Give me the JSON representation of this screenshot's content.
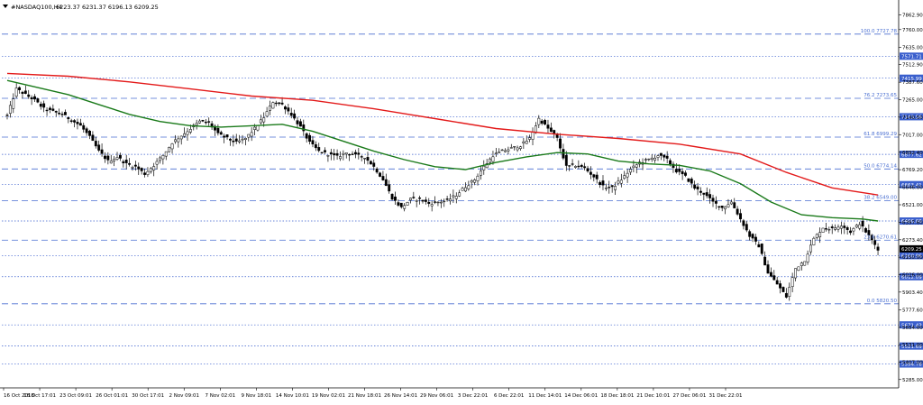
{
  "header": {
    "symbol_text": "#NASDAQ100,H4",
    "ohlc_text": "6223.37 6231.37 6196.13 6209.25",
    "dropdown_icon": "triangle-down-icon"
  },
  "colors": {
    "candle": "#000000",
    "ma_fast": "#1a7a1a",
    "ma_slow": "#e31a1a",
    "fib_line": "#4a6fd1",
    "level_line": "#3a5fcd",
    "level_label_bg": "#3a5fcd",
    "axis": "#000000"
  },
  "chart_data": {
    "type": "candlestick",
    "y_range": [
      5226,
      7950
    ],
    "price_axis_ticks": [
      "7862.90",
      "7760.00",
      "7635.00",
      "7512.90",
      "7387.60",
      "7265.00",
      "7140.50",
      "7017.00",
      "6892.40",
      "6769.20",
      "6646.00",
      "6521.00",
      "6397.60",
      "6273.40",
      "6150.00",
      "6026.00",
      "5903.40",
      "5777.60",
      "5654.00",
      "5531.00",
      "5407.00",
      "5285.00"
    ],
    "time_axis_ticks": [
      "16 Oct 2018",
      "18 Oct 17:01",
      "23 Oct 09:01",
      "26 Oct 01:01",
      "30 Oct 17:01",
      "2 Nov 09:01",
      "7 Nov 02:01",
      "9 Nov 18:01",
      "14 Nov 10:01",
      "19 Nov 02:01",
      "21 Nov 18:01",
      "26 Nov 14:01",
      "29 Nov 06:01",
      "3 Dec 22:01",
      "6 Dec 22:01",
      "11 Dec 14:01",
      "14 Dec 06:01",
      "18 Dec 18:01",
      "21 Dec 10:01",
      "27 Dec 06:01",
      "31 Dec 22:01"
    ],
    "fib_levels": [
      {
        "label": "100.0 7727.78",
        "price": 7727.78
      },
      {
        "label": "76.2 7273.65",
        "price": 7273.65
      },
      {
        "label": "61.8 6999.29",
        "price": 6999.29
      },
      {
        "label": "50.0 6774.14",
        "price": 6774.14
      },
      {
        "label": "38.2 6549.00",
        "price": 6549.0
      },
      {
        "label": "23.6 6270.61",
        "price": 6270.61
      },
      {
        "label": "0.0 5820.50",
        "price": 5820.5
      }
    ],
    "level_lines": [
      {
        "label": "7571.71",
        "price": 7571.71
      },
      {
        "label": "7415.99",
        "price": 7415.99
      },
      {
        "label": "7143.56",
        "price": 7143.56
      },
      {
        "label": "6877.62",
        "price": 6877.62
      },
      {
        "label": "6663.41",
        "price": 6663.41
      },
      {
        "label": "6406.00",
        "price": 6406.0
      },
      {
        "label": "6160.96",
        "price": 6160.96
      },
      {
        "label": "6012.09",
        "price": 6012.09
      },
      {
        "label": "5671.43",
        "price": 5671.43
      },
      {
        "label": "5521.69",
        "price": 5521.69
      },
      {
        "label": "5394.78",
        "price": 5394.78
      }
    ],
    "current_price": {
      "label": "6209.25",
      "price": 6209.25
    },
    "close_path": [
      [
        0,
        7150
      ],
      [
        3,
        7340
      ],
      [
        6,
        7300
      ],
      [
        9,
        7260
      ],
      [
        12,
        7200
      ],
      [
        15,
        7180
      ],
      [
        18,
        7160
      ],
      [
        21,
        7120
      ],
      [
        24,
        7080
      ],
      [
        27,
        7000
      ],
      [
        30,
        6900
      ],
      [
        33,
        6830
      ],
      [
        36,
        6860
      ],
      [
        39,
        6810
      ],
      [
        42,
        6790
      ],
      [
        45,
        6740
      ],
      [
        48,
        6800
      ],
      [
        51,
        6870
      ],
      [
        54,
        6960
      ],
      [
        57,
        7010
      ],
      [
        60,
        7060
      ],
      [
        63,
        7110
      ],
      [
        66,
        7100
      ],
      [
        69,
        7020
      ],
      [
        72,
        6990
      ],
      [
        75,
        6960
      ],
      [
        78,
        6990
      ],
      [
        81,
        7060
      ],
      [
        84,
        7140
      ],
      [
        87,
        7250
      ],
      [
        90,
        7230
      ],
      [
        93,
        7160
      ],
      [
        96,
        7070
      ],
      [
        99,
        6960
      ],
      [
        102,
        6900
      ],
      [
        105,
        6880
      ],
      [
        108,
        6860
      ],
      [
        111,
        6890
      ],
      [
        114,
        6870
      ],
      [
        117,
        6860
      ],
      [
        120,
        6790
      ],
      [
        123,
        6700
      ],
      [
        126,
        6570
      ],
      [
        129,
        6500
      ],
      [
        132,
        6560
      ],
      [
        135,
        6560
      ],
      [
        138,
        6530
      ],
      [
        141,
        6540
      ],
      [
        144,
        6550
      ],
      [
        147,
        6590
      ],
      [
        150,
        6650
      ],
      [
        153,
        6700
      ],
      [
        156,
        6790
      ],
      [
        159,
        6870
      ],
      [
        162,
        6900
      ],
      [
        165,
        6920
      ],
      [
        168,
        6940
      ],
      [
        171,
        6990
      ],
      [
        174,
        7130
      ],
      [
        177,
        7060
      ],
      [
        180,
        6990
      ],
      [
        183,
        6790
      ],
      [
        186,
        6800
      ],
      [
        189,
        6780
      ],
      [
        192,
        6720
      ],
      [
        195,
        6650
      ],
      [
        198,
        6640
      ],
      [
        201,
        6700
      ],
      [
        204,
        6770
      ],
      [
        207,
        6820
      ],
      [
        210,
        6840
      ],
      [
        213,
        6870
      ],
      [
        216,
        6840
      ],
      [
        219,
        6760
      ],
      [
        222,
        6720
      ],
      [
        225,
        6640
      ],
      [
        228,
        6600
      ],
      [
        231,
        6540
      ],
      [
        234,
        6500
      ],
      [
        237,
        6540
      ],
      [
        240,
        6420
      ],
      [
        243,
        6300
      ],
      [
        246,
        6230
      ],
      [
        249,
        6040
      ],
      [
        252,
        5960
      ],
      [
        255,
        5870
      ],
      [
        258,
        6070
      ],
      [
        261,
        6130
      ],
      [
        264,
        6280
      ],
      [
        267,
        6360
      ],
      [
        270,
        6350
      ],
      [
        273,
        6380
      ],
      [
        276,
        6330
      ],
      [
        279,
        6390
      ],
      [
        282,
        6300
      ],
      [
        285,
        6209
      ]
    ],
    "ma_slow_path": [
      [
        0,
        7450
      ],
      [
        20,
        7430
      ],
      [
        40,
        7390
      ],
      [
        60,
        7340
      ],
      [
        80,
        7290
      ],
      [
        100,
        7260
      ],
      [
        120,
        7200
      ],
      [
        140,
        7130
      ],
      [
        160,
        7060
      ],
      [
        180,
        7020
      ],
      [
        200,
        6990
      ],
      [
        220,
        6950
      ],
      [
        240,
        6880
      ],
      [
        255,
        6750
      ],
      [
        270,
        6640
      ],
      [
        285,
        6590
      ]
    ],
    "ma_fast_path": [
      [
        0,
        7400
      ],
      [
        10,
        7350
      ],
      [
        20,
        7300
      ],
      [
        30,
        7230
      ],
      [
        40,
        7160
      ],
      [
        50,
        7110
      ],
      [
        60,
        7080
      ],
      [
        70,
        7070
      ],
      [
        80,
        7080
      ],
      [
        90,
        7090
      ],
      [
        100,
        7040
      ],
      [
        110,
        6970
      ],
      [
        120,
        6900
      ],
      [
        130,
        6840
      ],
      [
        140,
        6790
      ],
      [
        150,
        6770
      ],
      [
        160,
        6820
      ],
      [
        170,
        6860
      ],
      [
        180,
        6890
      ],
      [
        190,
        6880
      ],
      [
        200,
        6830
      ],
      [
        210,
        6810
      ],
      [
        220,
        6800
      ],
      [
        230,
        6760
      ],
      [
        240,
        6670
      ],
      [
        250,
        6540
      ],
      [
        260,
        6450
      ],
      [
        270,
        6430
      ],
      [
        280,
        6420
      ],
      [
        285,
        6406
      ]
    ]
  }
}
